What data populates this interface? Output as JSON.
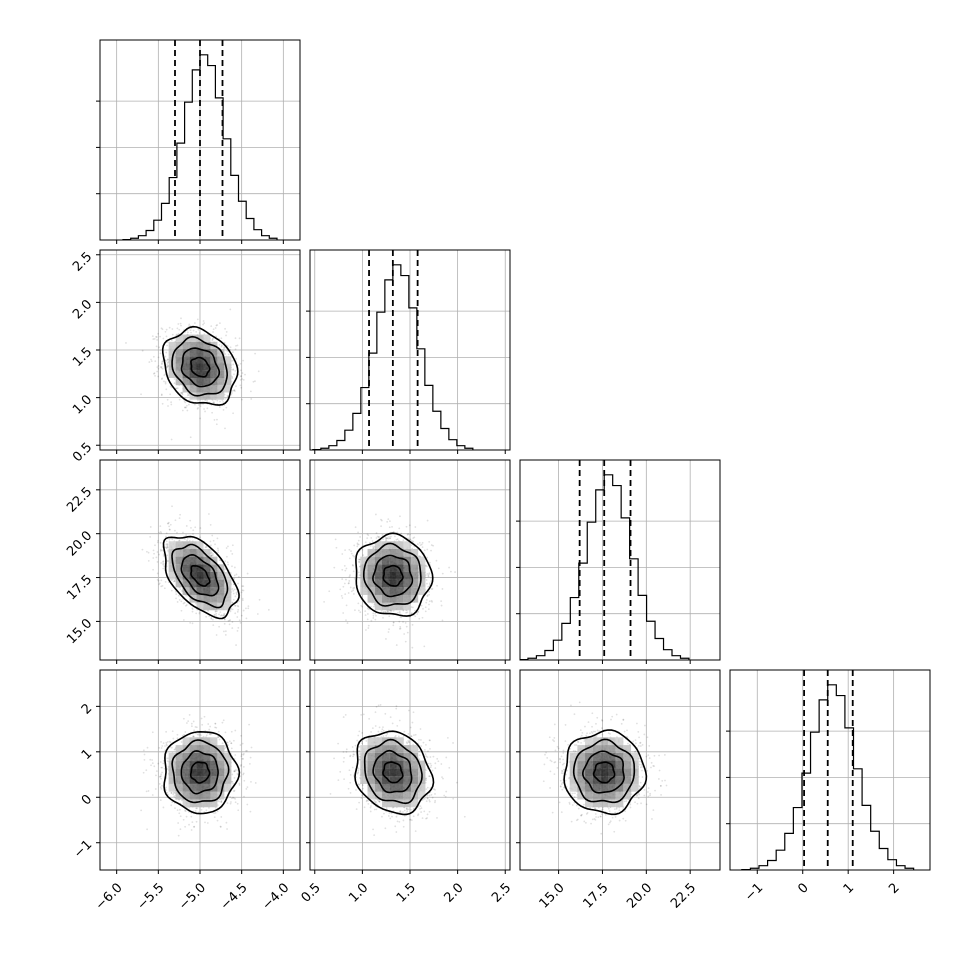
{
  "chart_data": {
    "type": "corner",
    "grid": true,
    "colors": {
      "line": "#000000",
      "grid": "#b0b0b0",
      "scatter": "#c8c8c8",
      "density_dark": "#000000"
    },
    "parameters": [
      {
        "range": [
          -6.2,
          -3.8
        ],
        "ticks": [
          -6.0,
          -5.5,
          -5.0,
          -4.5,
          -4.0
        ],
        "tick_labels": [
          "−6.0",
          "−5.5",
          "−5.0",
          "−4.5",
          "−4.0"
        ],
        "mean": -5.0,
        "sd": 0.22,
        "quantiles": [
          -5.3,
          -5.0,
          -4.73
        ]
      },
      {
        "range": [
          0.45,
          2.55
        ],
        "ticks": [
          0.5,
          1.0,
          1.5,
          2.0,
          2.5
        ],
        "tick_labels": [
          "0.5",
          "1.0",
          "1.5",
          "2.0",
          "2.5"
        ],
        "mean": 1.32,
        "sd": 0.2,
        "quantiles": [
          1.07,
          1.32,
          1.58
        ]
      },
      {
        "range": [
          12.8,
          24.2
        ],
        "ticks": [
          15.0,
          17.5,
          20.0,
          22.5
        ],
        "tick_labels": [
          "15.0",
          "17.5",
          "20.0",
          "22.5"
        ],
        "mean": 17.6,
        "sd": 1.15,
        "quantiles": [
          16.2,
          17.6,
          19.1
        ]
      },
      {
        "range": [
          -1.6,
          2.8
        ],
        "ticks": [
          -1,
          0,
          1,
          2
        ],
        "tick_labels": [
          "−1",
          "0",
          "1",
          "2"
        ],
        "mean": 0.55,
        "sd": 0.45,
        "quantiles": [
          0.03,
          0.55,
          1.1
        ]
      }
    ],
    "correlations": [
      {
        "pair": [
          1,
          0
        ],
        "rho": -0.2
      },
      {
        "pair": [
          2,
          0
        ],
        "rho": -0.5
      },
      {
        "pair": [
          2,
          1
        ],
        "rho": -0.05
      },
      {
        "pair": [
          3,
          0
        ],
        "rho": 0.0
      },
      {
        "pair": [
          3,
          1
        ],
        "rho": -0.15
      },
      {
        "pair": [
          3,
          2
        ],
        "rho": 0.0
      }
    ],
    "histograms": [
      [
        1,
        4,
        10,
        22,
        46,
        85,
        145,
        225,
        320,
        395,
        430,
        405,
        330,
        235,
        150,
        90,
        50,
        24,
        10,
        4
      ],
      [
        1,
        4,
        10,
        22,
        46,
        85,
        145,
        225,
        320,
        395,
        430,
        405,
        330,
        235,
        150,
        90,
        50,
        24,
        10,
        4
      ],
      [
        1,
        4,
        10,
        22,
        46,
        85,
        145,
        225,
        320,
        395,
        430,
        405,
        330,
        235,
        150,
        90,
        50,
        24,
        10,
        4
      ],
      [
        1,
        4,
        10,
        22,
        46,
        85,
        145,
        225,
        320,
        395,
        430,
        405,
        330,
        235,
        150,
        90,
        50,
        24,
        10,
        4
      ]
    ],
    "contour_levels_sigma": [
      0.5,
      1.0,
      1.5,
      2.0
    ]
  }
}
